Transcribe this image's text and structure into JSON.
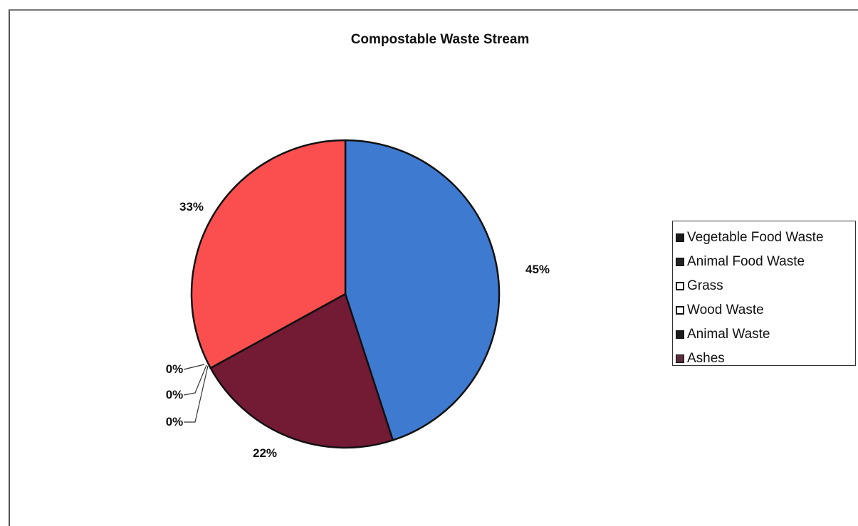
{
  "chart_data": {
    "type": "pie",
    "title": "Compostable Waste Stream",
    "categories": [
      "Vegetable Food Waste",
      "Animal Food Waste",
      "Grass",
      "Wood Waste",
      "Animal Waste",
      "Ashes"
    ],
    "values": [
      45,
      22,
      0,
      0,
      0,
      33
    ],
    "value_labels": [
      "45%",
      "22%",
      "0%",
      "0%",
      "0%",
      "33%"
    ],
    "slice_colors": [
      "#3e7ad0",
      "#731a35",
      "#cfd96a",
      "#d8d8d8",
      "#2a2a2a",
      "#fb4f4f"
    ],
    "legend_swatch_colors": [
      "#1a1a1a",
      "#222222",
      "#ffffff",
      "#ffffff",
      "#1a1a1a",
      "#5a2e3e"
    ],
    "legend_position": "right"
  }
}
